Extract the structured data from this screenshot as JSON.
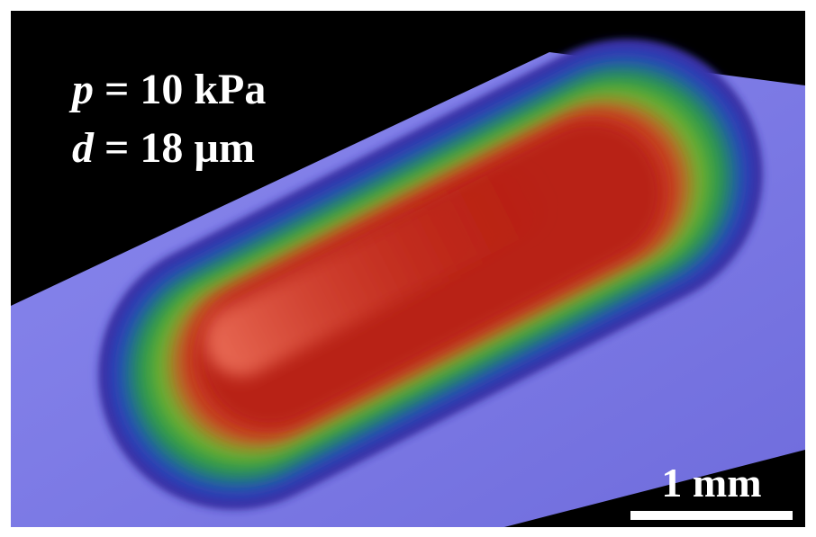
{
  "annotations": {
    "pressure": {
      "symbol": "p",
      "text": "= 10 kPa"
    },
    "thickness": {
      "symbol": "d",
      "text": "= 18 µm"
    }
  },
  "scale_bar": {
    "label": "1 mm"
  }
}
